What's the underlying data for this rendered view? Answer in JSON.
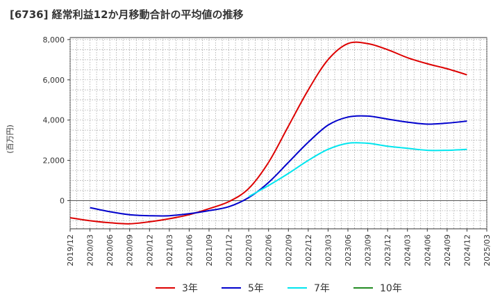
{
  "title": "[6736]  経常利益12か月移動合計の平均値の推移",
  "chart_data": {
    "type": "line",
    "ylabel": "(百万円)",
    "xlabel": "",
    "ylim": [
      -1400,
      8100
    ],
    "y_ticks": [
      0,
      2000,
      4000,
      6000,
      8000
    ],
    "y_tick_labels": [
      "0",
      "2,000",
      "4,000",
      "6,000",
      "8,000"
    ],
    "x_range": [
      "2019-12",
      "2025-03"
    ],
    "x_tick_labels": [
      "2019/12",
      "2020/03",
      "2020/06",
      "2020/09",
      "2020/12",
      "2021/03",
      "2021/06",
      "2021/09",
      "2021/12",
      "2022/03",
      "2022/06",
      "2022/09",
      "2022/12",
      "2023/03",
      "2023/06",
      "2023/09",
      "2023/12",
      "2024/03",
      "2024/06",
      "2024/09",
      "2024/12",
      "2025/03"
    ],
    "grid": true,
    "legend_position": "bottom",
    "series": [
      {
        "name": "3年",
        "color": "#dd0000",
        "points": [
          [
            "2019-12",
            -850
          ],
          [
            "2020-03",
            -1000
          ],
          [
            "2020-06",
            -1100
          ],
          [
            "2020-09",
            -1150
          ],
          [
            "2020-12",
            -1050
          ],
          [
            "2021-03",
            -900
          ],
          [
            "2021-06",
            -700
          ],
          [
            "2021-09",
            -400
          ],
          [
            "2021-12",
            -50
          ],
          [
            "2022-03",
            600
          ],
          [
            "2022-06",
            1900
          ],
          [
            "2022-09",
            3700
          ],
          [
            "2022-12",
            5500
          ],
          [
            "2023-03",
            7000
          ],
          [
            "2023-06",
            7800
          ],
          [
            "2023-09",
            7800
          ],
          [
            "2023-12",
            7500
          ],
          [
            "2024-03",
            7100
          ],
          [
            "2024-06",
            6800
          ],
          [
            "2024-09",
            6550
          ],
          [
            "2024-12",
            6250
          ]
        ]
      },
      {
        "name": "5年",
        "color": "#0000cc",
        "points": [
          [
            "2020-03",
            -350
          ],
          [
            "2020-06",
            -550
          ],
          [
            "2020-09",
            -700
          ],
          [
            "2020-12",
            -750
          ],
          [
            "2021-03",
            -750
          ],
          [
            "2021-06",
            -650
          ],
          [
            "2021-09",
            -500
          ],
          [
            "2021-12",
            -300
          ],
          [
            "2022-03",
            150
          ],
          [
            "2022-06",
            900
          ],
          [
            "2022-09",
            1900
          ],
          [
            "2022-12",
            2900
          ],
          [
            "2023-03",
            3750
          ],
          [
            "2023-06",
            4150
          ],
          [
            "2023-09",
            4200
          ],
          [
            "2023-12",
            4050
          ],
          [
            "2024-03",
            3900
          ],
          [
            "2024-06",
            3800
          ],
          [
            "2024-09",
            3850
          ],
          [
            "2024-12",
            3950
          ]
        ]
      },
      {
        "name": "7年",
        "color": "#00e5ee",
        "points": [
          [
            "2022-03",
            200
          ],
          [
            "2022-06",
            750
          ],
          [
            "2022-09",
            1350
          ],
          [
            "2022-12",
            2000
          ],
          [
            "2023-03",
            2550
          ],
          [
            "2023-06",
            2850
          ],
          [
            "2023-09",
            2850
          ],
          [
            "2023-12",
            2700
          ],
          [
            "2024-03",
            2600
          ],
          [
            "2024-06",
            2500
          ],
          [
            "2024-09",
            2500
          ],
          [
            "2024-12",
            2550
          ]
        ]
      },
      {
        "name": "10年",
        "color": "#228b22",
        "points": []
      }
    ]
  }
}
